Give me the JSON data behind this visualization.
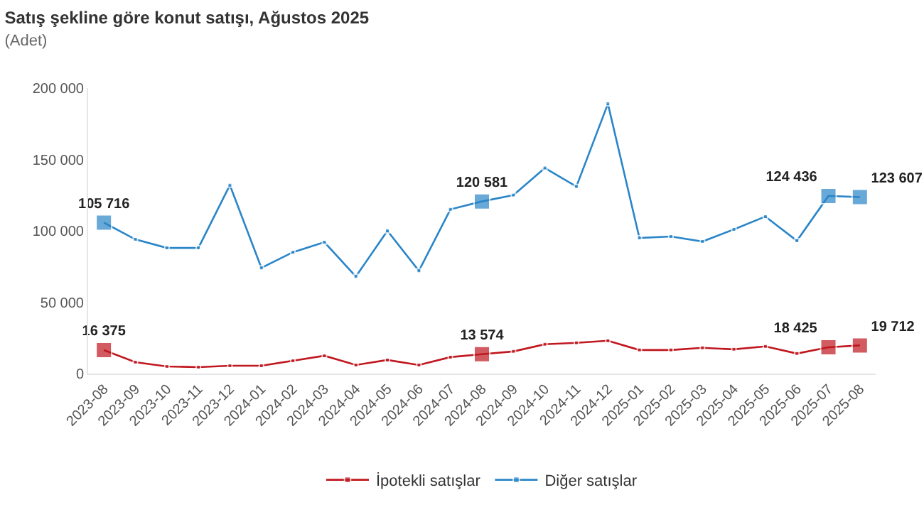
{
  "chart_data": {
    "type": "line",
    "title": "Satış şekline göre konut satışı, Ağustos 2025",
    "subtitle": "(Adet)",
    "categories": [
      "2023-08",
      "2023-09",
      "2023-10",
      "2023-11",
      "2023-12",
      "2024-01",
      "2024-02",
      "2024-03",
      "2024-04",
      "2024-05",
      "2024-06",
      "2024-07",
      "2024-08",
      "2024-09",
      "2024-10",
      "2024-11",
      "2024-12",
      "2025-01",
      "2025-02",
      "2025-03",
      "2025-04",
      "2025-05",
      "2025-06",
      "2025-07",
      "2025-08"
    ],
    "series": [
      {
        "name": "İpotekli satışlar",
        "color": "#c0171f",
        "values": [
          16375,
          8000,
          5000,
          4500,
          5500,
          5500,
          9000,
          12500,
          6000,
          9500,
          6000,
          11500,
          13574,
          15500,
          20500,
          21500,
          23000,
          16500,
          16500,
          18000,
          17000,
          19000,
          14000,
          18425,
          19712
        ],
        "value_labels": [
          "16 375",
          null,
          null,
          null,
          null,
          null,
          null,
          null,
          null,
          null,
          null,
          null,
          "13 574",
          null,
          null,
          null,
          null,
          null,
          null,
          null,
          null,
          null,
          null,
          "18 425",
          "19 712"
        ]
      },
      {
        "name": "Diğer satışlar",
        "color": "#2a86c8",
        "values": [
          105716,
          94000,
          88000,
          88000,
          132000,
          74000,
          85000,
          92000,
          68000,
          100000,
          72000,
          115000,
          120581,
          125000,
          144000,
          131000,
          189000,
          95000,
          96000,
          92500,
          101000,
          110000,
          93000,
          124436,
          123607
        ],
        "value_labels": [
          "105 716",
          null,
          null,
          null,
          null,
          null,
          null,
          null,
          null,
          null,
          null,
          null,
          "120 581",
          null,
          null,
          null,
          null,
          null,
          null,
          null,
          null,
          null,
          null,
          "124 436",
          "123 607"
        ]
      }
    ],
    "ylim": [
      0,
      200000
    ],
    "yticks": [
      {
        "value": 0,
        "label": "0"
      },
      {
        "value": 50000,
        "label": "50 000"
      },
      {
        "value": 100000,
        "label": "100 000"
      },
      {
        "value": 150000,
        "label": "150 000"
      },
      {
        "value": 200000,
        "label": "200 000"
      }
    ],
    "grid": false,
    "legend": "bottom",
    "marker": "square",
    "line_style": "solid"
  }
}
